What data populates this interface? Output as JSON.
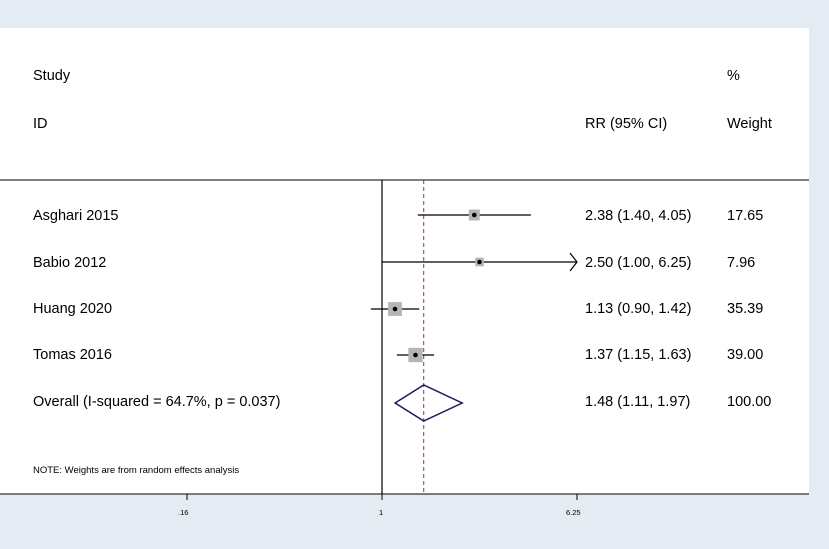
{
  "chart_data": {
    "type": "forest",
    "header": {
      "col1_line1": "Study",
      "col1_line2": "ID",
      "col2": "RR (95% CI)",
      "col3_line1": "%",
      "col3_line2": "Weight"
    },
    "studies": [
      {
        "label": "Asghari 2015",
        "rr": 2.38,
        "lo": 1.4,
        "hi": 4.05,
        "ci_text": "2.38 (1.40, 4.05)",
        "weight": 17.65,
        "weight_text": "17.65"
      },
      {
        "label": "Babio 2012",
        "rr": 2.5,
        "lo": 1.0,
        "hi": 6.25,
        "ci_text": "2.50 (1.00, 6.25)",
        "weight": 7.96,
        "weight_text": "7.96",
        "arrow_right": true
      },
      {
        "label": "Huang 2020",
        "rr": 1.13,
        "lo": 0.9,
        "hi": 1.42,
        "ci_text": "1.13 (0.90, 1.42)",
        "weight": 35.39,
        "weight_text": "35.39"
      },
      {
        "label": "Tomas 2016",
        "rr": 1.37,
        "lo": 1.15,
        "hi": 1.63,
        "ci_text": "1.37 (1.15, 1.63)",
        "weight": 39.0,
        "weight_text": "39.00"
      }
    ],
    "overall": {
      "label": "Overall  (I-squared = 64.7%, p = 0.037)",
      "rr": 1.48,
      "lo": 1.11,
      "hi": 1.97,
      "ci_text": "1.48 (1.11, 1.97)",
      "weight_text": "100.00"
    },
    "note": "NOTE: Weights are from random effects analysis",
    "x_ticks": [
      {
        "value": 0.16,
        "label": ".16"
      },
      {
        "value": 1,
        "label": "1"
      },
      {
        "value": 6.25,
        "label": "6.25"
      }
    ],
    "x_scale": "log",
    "null_line": 1,
    "colors": {
      "marker_box": "#b5b5b5",
      "line": "#000000",
      "overall_line": "#a8322b",
      "diamond": "#1a1a5e",
      "background": "#e4ebf2"
    }
  }
}
